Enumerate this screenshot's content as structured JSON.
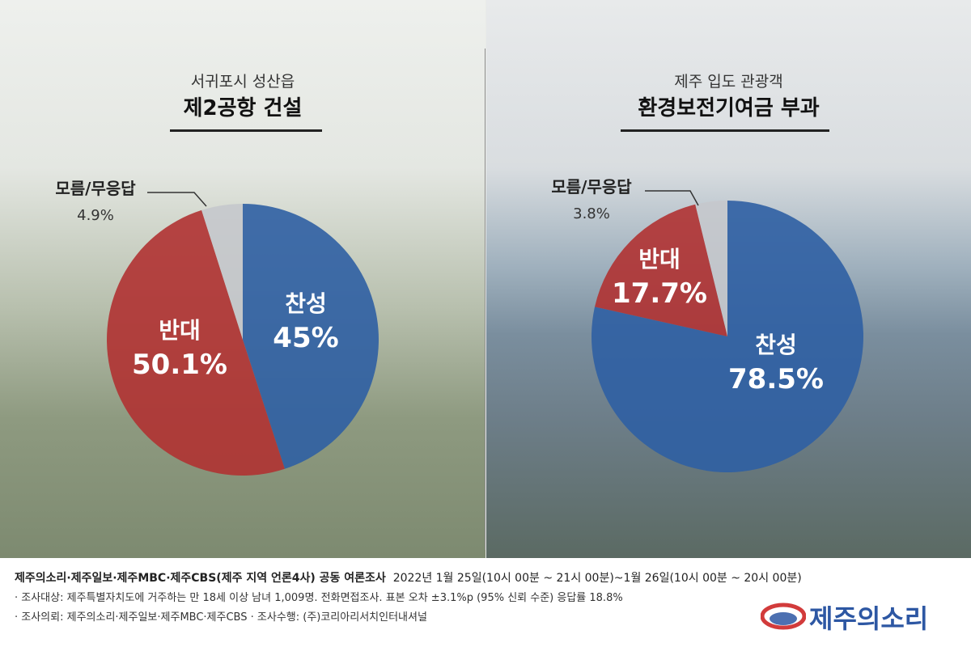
{
  "chart_data": [
    {
      "type": "pie",
      "subtitle": "서귀포시 성산읍",
      "title": "제2공항 건설",
      "slices": [
        {
          "label": "찬성",
          "value": 45,
          "value_label": "45%",
          "color": "#2f5fa3"
        },
        {
          "label": "반대",
          "value": 50.1,
          "value_label": "50.1%",
          "color": "#b03232"
        },
        {
          "label": "모름/무응답",
          "value": 4.9,
          "value_label": "4.9%",
          "color": "#c5c8cc"
        }
      ]
    },
    {
      "type": "pie",
      "subtitle": "제주 입도 관광객",
      "title": "환경보전기여금 부과",
      "slices": [
        {
          "label": "찬성",
          "value": 78.5,
          "value_label": "78.5%",
          "color": "#2f5fa3"
        },
        {
          "label": "반대",
          "value": 17.7,
          "value_label": "17.7%",
          "color": "#b03232"
        },
        {
          "label": "모름/무응답",
          "value": 3.8,
          "value_label": "3.8%",
          "color": "#c5c8cc"
        }
      ]
    }
  ],
  "footer": {
    "source_bold": "제주의소리·제주일보·제주MBC·제주CBS(제주 지역 언론4사) 공동 여론조사",
    "source_date": "2022년 1월 25일(10시 00분 ~ 21시 00분)~1월 26일(10시 00분 ~ 20시 00분)",
    "note1": "· 조사대상: 제주특별자치도에 거주하는 만 18세 이상 남녀 1,009명.  전화면접조사.  표본 오차 ±3.1%p (95% 신뢰 수준) 응답률 18.8%",
    "note2": "· 조사의뢰: 제주의소리·제주일보·제주MBC·제주CBS  · 조사수행: (주)코리아리서치인터내셔널"
  },
  "logo": {
    "text": "제주의소리",
    "icon": "jejusori-swoosh-icon"
  }
}
